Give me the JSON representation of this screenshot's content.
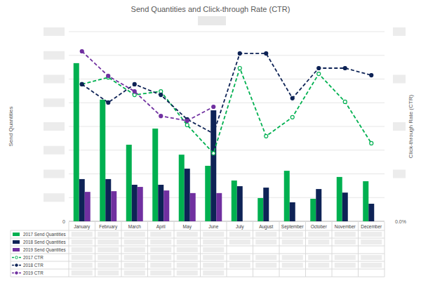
{
  "chart_data": {
    "type": "bar",
    "title": "Send Quantities and Click-through Rate (CTR)",
    "ylabel": "Send Quantities",
    "y2label": "Click-through Rate (CTR)",
    "categories": [
      "January",
      "February",
      "March",
      "April",
      "May",
      "June",
      "July",
      "August",
      "September",
      "October",
      "November",
      "December"
    ],
    "series": [
      {
        "name": "2017 Send Quantities",
        "type": "bar",
        "color": "#00b050",
        "values": [
          6.67,
          5.13,
          3.23,
          3.91,
          2.81,
          2.34,
          1.72,
          0.98,
          2.13,
          0.95,
          1.87,
          1.69
        ]
      },
      {
        "name": "2018 Send Quantities",
        "type": "bar",
        "color": "#0e2356",
        "values": [
          1.78,
          1.78,
          1.54,
          1.54,
          2.22,
          4.68,
          1.48,
          1.42,
          0.8,
          1.36,
          1.21,
          0.74
        ]
      },
      {
        "name": "2019 Send Quantities",
        "type": "bar",
        "color": "#7030a0",
        "values": [
          1.24,
          1.27,
          1.45,
          1.3,
          1.19,
          1.19,
          null,
          null,
          null,
          null,
          null,
          null
        ]
      },
      {
        "name": "2017 CTR",
        "type": "line",
        "axis": "y2",
        "color": "#00b050",
        "marker": "open_circle",
        "line_style": "dashed",
        "values": [
          5.78,
          6.07,
          5.33,
          5.48,
          4.06,
          2.87,
          6.46,
          3.59,
          4.39,
          6.22,
          5.04,
          3.29
        ]
      },
      {
        "name": "2018 CTR",
        "type": "line",
        "axis": "y2",
        "color": "#0e2356",
        "marker": "circle",
        "line_style": "dashed",
        "values": [
          5.78,
          5.01,
          5.78,
          5.33,
          4.3,
          3.7,
          7.08,
          7.08,
          5.19,
          6.46,
          6.46,
          6.16
        ]
      },
      {
        "name": "2019 CTR",
        "type": "line",
        "axis": "y2",
        "color": "#7030a0",
        "marker": "circle",
        "line_style": "dashed",
        "values": [
          7.17,
          6.13,
          5.48,
          4.44,
          4.24,
          4.83,
          null,
          null,
          null,
          null,
          null,
          null
        ]
      }
    ],
    "ylim": [
      0,
      8
    ],
    "yticks": [
      0,
      {
        "value": 1,
        "label": null
      },
      {
        "value": 2,
        "label": null
      },
      {
        "value": 3,
        "label": null
      },
      {
        "value": 4,
        "label": null
      },
      {
        "value": 5,
        "label": null
      },
      {
        "value": 6,
        "label": null
      },
      {
        "value": 7,
        "label": null
      },
      {
        "value": 8,
        "label": null
      }
    ],
    "y2lim": [
      0,
      8
    ],
    "y2ticks": [
      {
        "value": 0,
        "label": "0.0%"
      },
      {
        "value": 2,
        "label": null
      },
      {
        "value": 4,
        "label": null
      },
      {
        "value": 6,
        "label": null
      },
      {
        "value": 8,
        "label": null
      }
    ],
    "grid": true,
    "legend": "bottom"
  }
}
